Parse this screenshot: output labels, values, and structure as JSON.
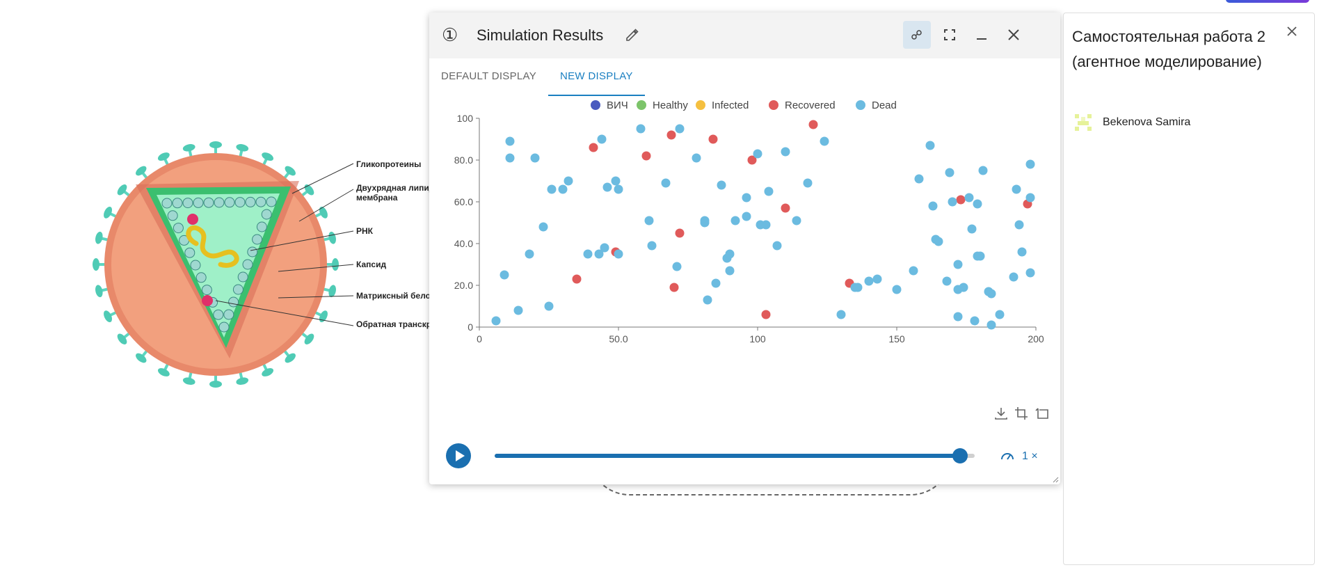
{
  "virus": {
    "labels": [
      "Гликопротеины",
      "Двухрядная липидная",
      "мембрана",
      "РНК",
      "Капсид",
      "Матриксный белок",
      "Обратная транскриптаза"
    ]
  },
  "panel": {
    "number_icon": "①",
    "title": "Simulation Results",
    "header_icons": [
      "edit-pencil-icon",
      "network-nodes-icon",
      "fullscreen-icon",
      "minimize-icon",
      "close-icon"
    ],
    "tabs": [
      "DEFAULT DISPLAY",
      "NEW DISPLAY"
    ],
    "active_tab": 1,
    "toolbar_icons": [
      "download-icon",
      "crop-icon",
      "reset-crop-icon"
    ],
    "playback": {
      "progress": 0.97,
      "speed_label": "1 ×"
    }
  },
  "chart_data": {
    "type": "scatter",
    "xlim": [
      0,
      200
    ],
    "ylim": [
      0,
      100
    ],
    "x_ticks": [
      "0",
      "50.0",
      "100",
      "150",
      "200"
    ],
    "y_ticks": [
      "0",
      "20.0",
      "40.0",
      "60.0",
      "80.0",
      "100"
    ],
    "grid": false,
    "legend_position": "top",
    "series": [
      {
        "name": "ВИЧ",
        "color": "#4a5bbf",
        "points": []
      },
      {
        "name": "Healthy",
        "color": "#7cc46a",
        "points": []
      },
      {
        "name": "Infected",
        "color": "#f5c040",
        "points": []
      },
      {
        "name": "Recovered",
        "color": "#e05a5a",
        "points": [
          [
            35,
            23
          ],
          [
            41,
            86
          ],
          [
            49,
            36
          ],
          [
            60,
            82
          ],
          [
            69,
            92
          ],
          [
            70,
            19
          ],
          [
            72,
            45
          ],
          [
            84,
            90
          ],
          [
            98,
            80
          ],
          [
            103,
            6
          ],
          [
            110,
            57
          ],
          [
            120,
            97
          ],
          [
            133,
            21
          ],
          [
            173,
            61
          ],
          [
            197,
            59
          ]
        ]
      },
      {
        "name": "Dead",
        "color": "#6bbbe0",
        "points": [
          [
            6,
            3
          ],
          [
            9,
            25
          ],
          [
            11,
            89
          ],
          [
            11,
            81
          ],
          [
            14,
            8
          ],
          [
            18,
            35
          ],
          [
            20,
            81
          ],
          [
            23,
            48
          ],
          [
            25,
            10
          ],
          [
            26,
            66
          ],
          [
            30,
            66
          ],
          [
            32,
            70
          ],
          [
            39,
            35
          ],
          [
            43,
            35
          ],
          [
            44,
            90
          ],
          [
            45,
            38
          ],
          [
            46,
            67
          ],
          [
            49,
            70
          ],
          [
            50,
            66
          ],
          [
            50,
            35
          ],
          [
            58,
            95
          ],
          [
            61,
            51
          ],
          [
            62,
            39
          ],
          [
            67,
            69
          ],
          [
            71,
            29
          ],
          [
            72,
            95
          ],
          [
            78,
            81
          ],
          [
            81,
            51
          ],
          [
            81,
            50
          ],
          [
            82,
            13
          ],
          [
            85,
            21
          ],
          [
            87,
            68
          ],
          [
            89,
            33
          ],
          [
            90,
            27
          ],
          [
            90,
            35
          ],
          [
            92,
            51
          ],
          [
            96,
            53
          ],
          [
            96,
            62
          ],
          [
            100,
            83
          ],
          [
            101,
            49
          ],
          [
            103,
            49
          ],
          [
            104,
            65
          ],
          [
            107,
            39
          ],
          [
            110,
            84
          ],
          [
            114,
            51
          ],
          [
            118,
            69
          ],
          [
            124,
            89
          ],
          [
            130,
            6
          ],
          [
            135,
            19
          ],
          [
            136,
            19
          ],
          [
            140,
            22
          ],
          [
            143,
            23
          ],
          [
            150,
            18
          ],
          [
            156,
            27
          ],
          [
            158,
            71
          ],
          [
            162,
            87
          ],
          [
            163,
            58
          ],
          [
            164,
            42
          ],
          [
            165,
            41
          ],
          [
            168,
            22
          ],
          [
            169,
            74
          ],
          [
            170,
            60
          ],
          [
            172,
            30
          ],
          [
            172,
            5
          ],
          [
            172,
            18
          ],
          [
            174,
            19
          ],
          [
            176,
            62
          ],
          [
            177,
            47
          ],
          [
            178,
            3
          ],
          [
            179,
            34
          ],
          [
            179,
            59
          ],
          [
            180,
            34
          ],
          [
            181,
            75
          ],
          [
            183,
            17
          ],
          [
            184,
            16
          ],
          [
            184,
            1
          ],
          [
            187,
            6
          ],
          [
            192,
            24
          ],
          [
            193,
            66
          ],
          [
            194,
            49
          ],
          [
            195,
            36
          ],
          [
            198,
            78
          ],
          [
            198,
            62
          ],
          [
            198,
            26
          ]
        ]
      }
    ]
  },
  "side": {
    "title": "Самостоятельная работа 2 (агентное моделирование)",
    "author": "Bekenova Samira"
  }
}
